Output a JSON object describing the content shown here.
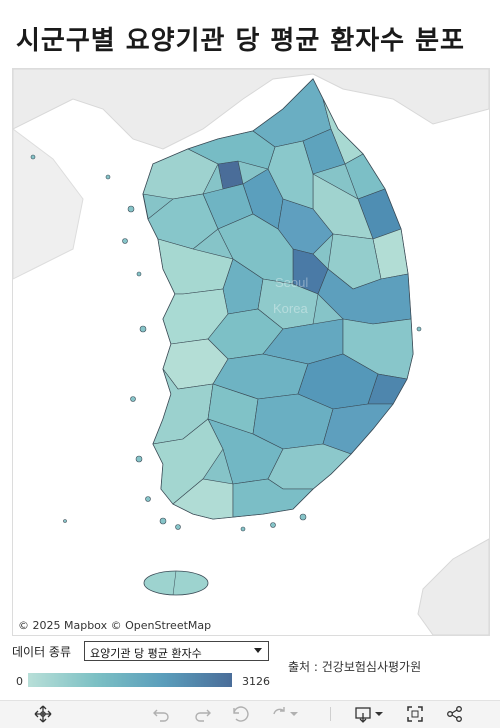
{
  "title": "시군구별 요양기관 당 평균 환자수 분포",
  "map": {
    "attribution_mapbox": "© 2025 Mapbox",
    "attribution_osm": "© OpenStreetMap",
    "watermark": "Seoul Korea",
    "colors": {
      "low": "#b8dfd8",
      "mid": "#7cc0c4",
      "high": "#4a6d99",
      "land": "#ececec",
      "sea": "#ffffff"
    }
  },
  "controls": {
    "data_type_label": "데이터 종류",
    "selected_measure": "요양기관 당 평균 환자수"
  },
  "legend": {
    "min": "0",
    "max": "3126"
  },
  "source": "출처 : 건강보험심사평가원",
  "toolbar": {
    "icons": [
      "move-icon",
      "undo-icon",
      "redo-icon",
      "revert-icon",
      "refresh-icon",
      "download-icon",
      "fullscreen-icon",
      "share-icon"
    ]
  }
}
